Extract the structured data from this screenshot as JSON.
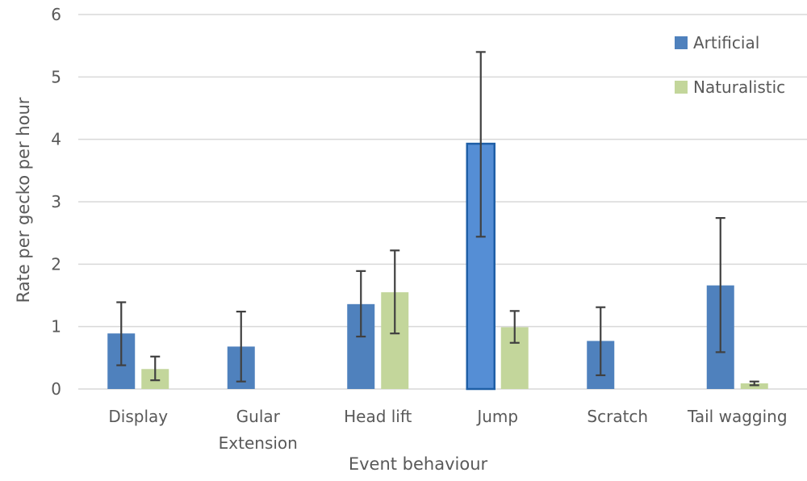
{
  "chart_data": {
    "type": "bar",
    "title": "",
    "xlabel": "Event behaviour",
    "ylabel": "Rate per gecko per hour",
    "ylim": [
      0,
      6
    ],
    "yticks": [
      0,
      1,
      2,
      3,
      4,
      5,
      6
    ],
    "grid": true,
    "legend_position": "top-right",
    "categories": [
      "Display",
      "Gular Extension",
      "Head lift",
      "Jump",
      "Scratch",
      "Tail wagging"
    ],
    "category_lines": [
      [
        "Display"
      ],
      [
        "Gular",
        "Extension"
      ],
      [
        "Head lift"
      ],
      [
        "Jump"
      ],
      [
        "Scratch"
      ],
      [
        "Tail wagging"
      ]
    ],
    "series": [
      {
        "name": "Artificial",
        "color": "#4f81bd",
        "values": [
          0.89,
          0.68,
          1.36,
          3.93,
          0.77,
          1.66
        ],
        "error_low": [
          0.38,
          0.12,
          0.84,
          2.44,
          0.22,
          0.59
        ],
        "error_high": [
          1.39,
          1.24,
          1.89,
          5.4,
          1.31,
          2.74
        ]
      },
      {
        "name": "Naturalistic",
        "color": "#c3d69b",
        "values": [
          0.32,
          null,
          1.55,
          0.99,
          null,
          0.09
        ],
        "error_low": [
          0.14,
          null,
          0.89,
          0.74,
          null,
          0.06
        ],
        "error_high": [
          0.52,
          null,
          2.22,
          1.25,
          null,
          0.12
        ]
      }
    ],
    "highlight": {
      "series": 0,
      "category": 3,
      "color": "#558ed5",
      "stroke": "#1f5fa6"
    }
  }
}
